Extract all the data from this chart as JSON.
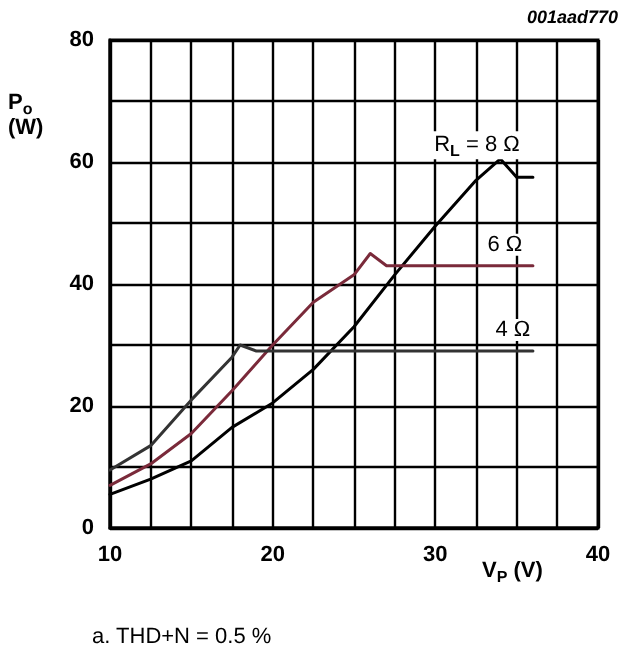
{
  "chart_data": {
    "type": "line",
    "xlabel": "V$_{P}$ (V)",
    "ylabel": "P$_{o}$ (W)",
    "annotations": [
      "001aad770",
      "a. THD+N = 0.5 %"
    ],
    "xlim": [
      10,
      40
    ],
    "ylim": [
      0,
      80
    ],
    "xticks": [
      10,
      {
        "value": 12.5,
        "label": null
      },
      {
        "value": 15,
        "label": null
      },
      {
        "value": 17.5,
        "label": null
      },
      20,
      {
        "value": 22.5,
        "label": null
      },
      {
        "value": 25,
        "label": null
      },
      {
        "value": 27.5,
        "label": null
      },
      30,
      {
        "value": 32.5,
        "label": null
      },
      {
        "value": 35,
        "label": null
      },
      {
        "value": 37.5,
        "label": null
      },
      40
    ],
    "yticks": [
      0,
      {
        "value": 10,
        "label": null
      },
      20,
      {
        "value": 30,
        "label": null
      },
      40,
      {
        "value": 50,
        "label": null
      },
      60,
      {
        "value": 70,
        "label": null
      },
      80
    ],
    "grid": true,
    "legend": false,
    "marker": "none",
    "line_style": "solid",
    "series": [
      {
        "name": "R$_{L}$ = 8 Ω",
        "color": "#000000",
        "x": [
          10,
          12.5,
          15,
          17.5,
          20,
          22.5,
          25,
          27.5,
          30,
          32.5,
          34,
          35,
          36
        ],
        "values": [
          5.5,
          8,
          11,
          16.5,
          20.5,
          26,
          33,
          41.5,
          49.5,
          57,
          60.5,
          57.5,
          57.5
        ]
      },
      {
        "name": "6 Ω",
        "color": "#7a2a3a",
        "x": [
          10,
          12.5,
          15,
          17.5,
          20,
          22.5,
          25,
          26,
          27,
          36
        ],
        "values": [
          7,
          10.5,
          15.5,
          22.5,
          30,
          37,
          41.5,
          45,
          43,
          43
        ]
      },
      {
        "name": "4 Ω",
        "color": "#333333",
        "x": [
          10,
          12.5,
          15,
          17.5,
          18,
          19,
          36
        ],
        "values": [
          9.5,
          13.5,
          21,
          28,
          30,
          29,
          29
        ]
      }
    ]
  }
}
